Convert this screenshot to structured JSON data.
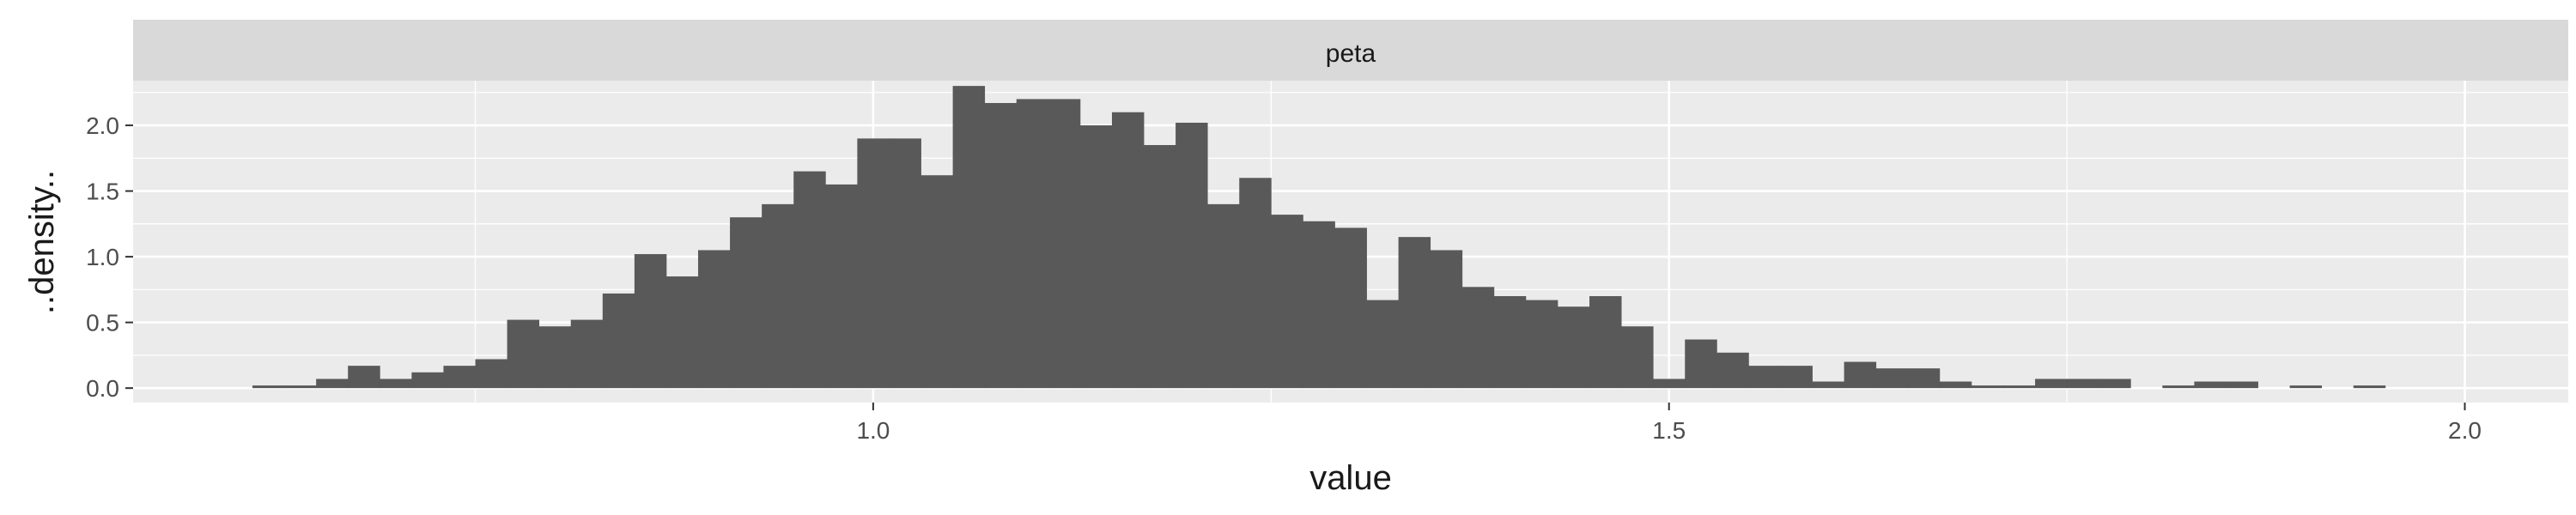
{
  "chart_data": {
    "type": "bar",
    "facet_label": "peta",
    "xlabel": "value",
    "ylabel": "..density..",
    "xlim": [
      0.535,
      2.065
    ],
    "ylim": [
      -0.11,
      2.34
    ],
    "x_ticks": [
      1.0,
      1.5,
      2.0
    ],
    "x_tick_labels": [
      "1.0",
      "1.5",
      "2.0"
    ],
    "y_ticks": [
      0.0,
      0.5,
      1.0,
      1.5,
      2.0
    ],
    "y_tick_labels": [
      "0.0",
      "0.5",
      "1.0",
      "1.5",
      "2.0"
    ],
    "bin_width": 0.02,
    "x": [
      0.62,
      0.64,
      0.66,
      0.68,
      0.7,
      0.72,
      0.74,
      0.76,
      0.78,
      0.8,
      0.82,
      0.84,
      0.86,
      0.88,
      0.9,
      0.92,
      0.94,
      0.96,
      0.98,
      1.0,
      1.02,
      1.04,
      1.06,
      1.08,
      1.1,
      1.12,
      1.14,
      1.16,
      1.18,
      1.2,
      1.22,
      1.24,
      1.26,
      1.28,
      1.3,
      1.32,
      1.34,
      1.36,
      1.38,
      1.4,
      1.42,
      1.44,
      1.46,
      1.48,
      1.5,
      1.52,
      1.54,
      1.56,
      1.58,
      1.6,
      1.62,
      1.64,
      1.66,
      1.68,
      1.7,
      1.72,
      1.74,
      1.76,
      1.78,
      1.8,
      1.82,
      1.84,
      1.86,
      1.88,
      1.9,
      1.92,
      1.94,
      1.96,
      1.98
    ],
    "values": [
      0.02,
      0.02,
      0.07,
      0.17,
      0.07,
      0.12,
      0.17,
      0.22,
      0.52,
      0.47,
      0.52,
      0.72,
      1.02,
      0.85,
      1.05,
      1.3,
      1.4,
      1.65,
      1.55,
      1.9,
      1.9,
      1.62,
      2.3,
      2.17,
      2.2,
      2.2,
      2.0,
      2.1,
      1.85,
      2.02,
      1.4,
      1.6,
      1.32,
      1.27,
      1.22,
      0.67,
      1.15,
      1.05,
      0.77,
      0.7,
      0.67,
      0.62,
      0.7,
      0.47,
      0.07,
      0.37,
      0.27,
      0.17,
      0.17,
      0.05,
      0.2,
      0.15,
      0.15,
      0.05,
      0.02,
      0.02,
      0.07,
      0.07,
      0.07,
      0.0,
      0.02,
      0.05,
      0.05,
      0.0,
      0.02,
      0.0,
      0.02,
      0.0,
      0.0
    ],
    "grid": true,
    "bar_color": "#595959",
    "panel_color": "#ebebeb",
    "strip_color": "#d9d9d9",
    "grid_color": "#ffffff"
  }
}
